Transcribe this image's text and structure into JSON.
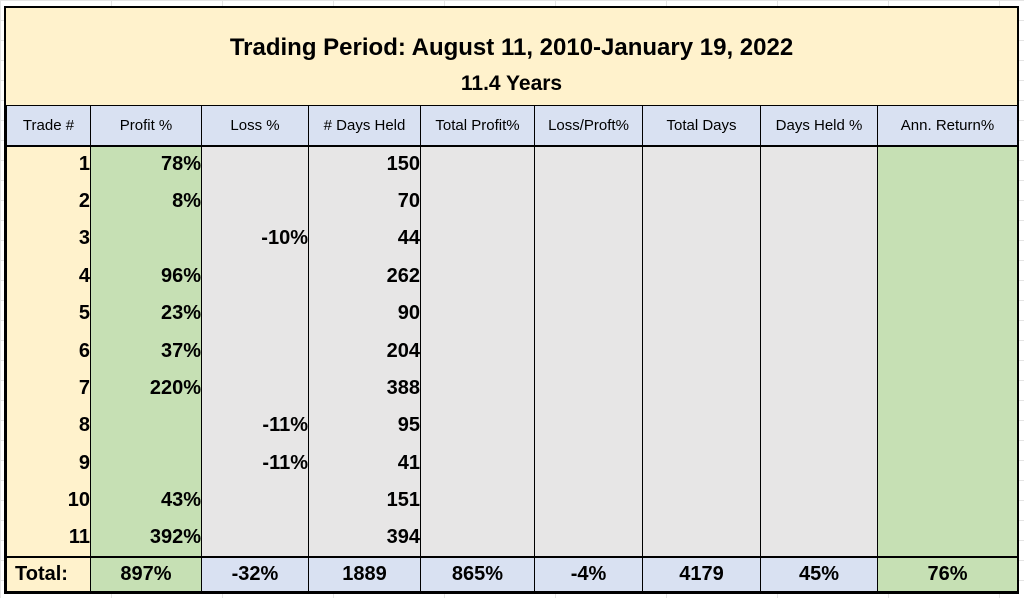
{
  "title": {
    "line1": "Trading Period: August 11, 2010-January 19, 2022",
    "line2": "11.4 Years"
  },
  "headers": [
    "Trade #",
    "Profit %",
    "Loss %",
    "# Days Held",
    "Total Profit%",
    "Loss/Proft%",
    "Total Days",
    "Days Held %",
    "Ann. Return%"
  ],
  "rows": [
    {
      "trade": "1",
      "profit": "78%",
      "loss": "",
      "days": "150"
    },
    {
      "trade": "2",
      "profit": "8%",
      "loss": "",
      "days": "70"
    },
    {
      "trade": "3",
      "profit": "",
      "loss": "-10%",
      "days": "44"
    },
    {
      "trade": "4",
      "profit": "96%",
      "loss": "",
      "days": "262"
    },
    {
      "trade": "5",
      "profit": "23%",
      "loss": "",
      "days": "90"
    },
    {
      "trade": "6",
      "profit": "37%",
      "loss": "",
      "days": "204"
    },
    {
      "trade": "7",
      "profit": "220%",
      "loss": "",
      "days": "388"
    },
    {
      "trade": "8",
      "profit": "",
      "loss": "-11%",
      "days": "95"
    },
    {
      "trade": "9",
      "profit": "",
      "loss": "-11%",
      "days": "41"
    },
    {
      "trade": "10",
      "profit": "43%",
      "loss": "",
      "days": "151"
    },
    {
      "trade": "11",
      "profit": "392%",
      "loss": "",
      "days": "394"
    }
  ],
  "totals": {
    "label": "Total:",
    "profit": "897%",
    "loss": "-32%",
    "days": "1889",
    "total_profit": "865%",
    "loss_profit": "-4%",
    "total_days": "4179",
    "days_held_pct": "45%",
    "ann_return": "76%"
  },
  "colors": {
    "title_band": "#fff2cc",
    "header": "#d9e1f2",
    "profit_col": "#c6e0b4",
    "gray_col": "#e7e6e6"
  }
}
